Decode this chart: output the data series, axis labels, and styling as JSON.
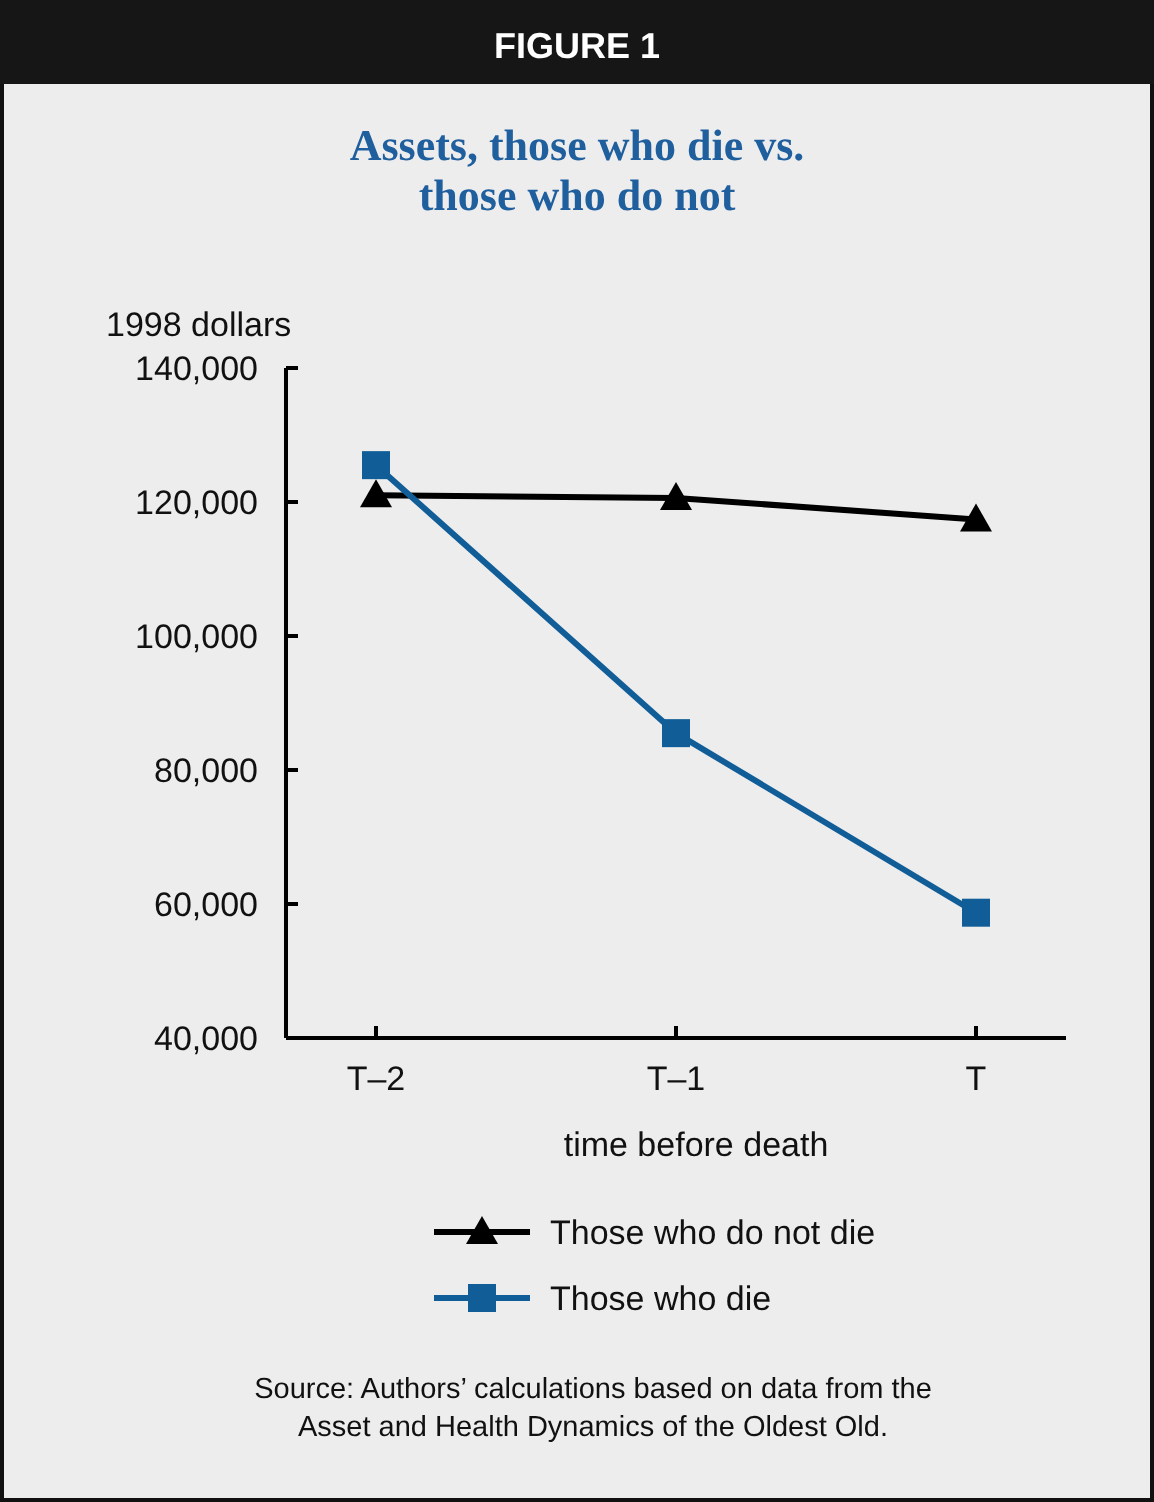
{
  "chart_data": {
    "type": "line",
    "title": "Assets, those who die vs. those who do not",
    "ylabel": "1998 dollars",
    "xlabel": "time before death",
    "categories": [
      "T–2",
      "T–1",
      "T"
    ],
    "series": [
      {
        "name": "Those who do not die",
        "color": "#000000",
        "marker": "triangle",
        "values": [
          121000,
          120600,
          117400
        ]
      },
      {
        "name": "Those who die",
        "color": "#115d98",
        "marker": "square",
        "values": [
          125500,
          85500,
          58700
        ]
      }
    ],
    "ylim": [
      40000,
      140000
    ],
    "yticks": [
      {
        "value": 40000,
        "label": "40,000"
      },
      {
        "value": 60000,
        "label": "60,000"
      },
      {
        "value": 80000,
        "label": "80,000"
      },
      {
        "value": 100000,
        "label": "100,000"
      },
      {
        "value": 120000,
        "label": "120,000"
      },
      {
        "value": 140000,
        "label": "140,000"
      }
    ],
    "grid": false,
    "legend": "bottom",
    "annotations": [
      "FIGURE 1",
      "Source: Authors’ calculations based on data from the Asset and Health Dynamics of the Oldest Old."
    ]
  }
}
